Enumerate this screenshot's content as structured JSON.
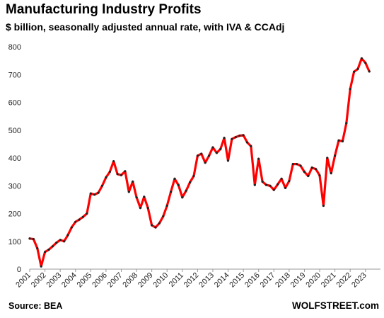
{
  "header": {
    "title": "Manufacturing Industry Profits",
    "subtitle": "$ billion, seasonally adjusted annual rate, with IVA & CCAdj"
  },
  "footer": {
    "source": "Source: BEA",
    "brand": "WOLFSTREET.com"
  },
  "chart_data": {
    "type": "line",
    "title": "Manufacturing Industry Profits",
    "subtitle": "$ billion, seasonally adjusted annual rate, with IVA & CCAdj",
    "xlabel": "",
    "ylabel": "",
    "ylim": [
      0,
      800
    ],
    "yticks": [
      0,
      100,
      200,
      300,
      400,
      500,
      600,
      700,
      800
    ],
    "xticks": [
      "2001",
      "2002",
      "2003",
      "2004",
      "2005",
      "2006",
      "2007",
      "2008",
      "2009",
      "2010",
      "2011",
      "2012",
      "2013",
      "2014",
      "2015",
      "2016",
      "2017",
      "2018",
      "2019",
      "2020",
      "2021",
      "2022",
      "2023"
    ],
    "grid": false,
    "legend": "none",
    "colors": {
      "line": "#ff0000",
      "marker": "#222222"
    },
    "series": [
      {
        "x": [
          "2001-Q1",
          "2001-Q2",
          "2001-Q3",
          "2001-Q4",
          "2002-Q1",
          "2002-Q2",
          "2002-Q3",
          "2002-Q4",
          "2003-Q1",
          "2003-Q2",
          "2003-Q3",
          "2003-Q4",
          "2004-Q1",
          "2004-Q2",
          "2004-Q3",
          "2004-Q4",
          "2005-Q1",
          "2005-Q2",
          "2005-Q3",
          "2005-Q4",
          "2006-Q1",
          "2006-Q2",
          "2006-Q3",
          "2006-Q4",
          "2007-Q1",
          "2007-Q2",
          "2007-Q3",
          "2007-Q4",
          "2008-Q1",
          "2008-Q2",
          "2008-Q3",
          "2008-Q4",
          "2009-Q1",
          "2009-Q2",
          "2009-Q3",
          "2009-Q4",
          "2010-Q1",
          "2010-Q2",
          "2010-Q3",
          "2010-Q4",
          "2011-Q1",
          "2011-Q2",
          "2011-Q3",
          "2011-Q4",
          "2012-Q1",
          "2012-Q2",
          "2012-Q3",
          "2012-Q4",
          "2013-Q1",
          "2013-Q2",
          "2013-Q3",
          "2013-Q4",
          "2014-Q1",
          "2014-Q2",
          "2014-Q3",
          "2014-Q4",
          "2015-Q1",
          "2015-Q2",
          "2015-Q3",
          "2015-Q4",
          "2016-Q1",
          "2016-Q2",
          "2016-Q3",
          "2016-Q4",
          "2017-Q1",
          "2017-Q2",
          "2017-Q3",
          "2017-Q4",
          "2018-Q1",
          "2018-Q2",
          "2018-Q3",
          "2018-Q4",
          "2019-Q1",
          "2019-Q2",
          "2019-Q3",
          "2019-Q4",
          "2020-Q1",
          "2020-Q2",
          "2020-Q3",
          "2020-Q4",
          "2021-Q1",
          "2021-Q2",
          "2021-Q3",
          "2021-Q4",
          "2022-Q1",
          "2022-Q2",
          "2022-Q3",
          "2022-Q4",
          "2023-Q1",
          "2023-Q2"
        ],
        "values": [
          110,
          108,
          75,
          10,
          62,
          70,
          82,
          95,
          105,
          100,
          122,
          150,
          170,
          178,
          188,
          200,
          272,
          268,
          275,
          300,
          330,
          350,
          388,
          342,
          338,
          352,
          278,
          315,
          258,
          220,
          260,
          220,
          158,
          150,
          165,
          190,
          228,
          278,
          325,
          302,
          258,
          282,
          312,
          335,
          408,
          415,
          383,
          408,
          438,
          418,
          432,
          472,
          390,
          468,
          475,
          480,
          482,
          456,
          442,
          303,
          397,
          315,
          303,
          300,
          285,
          305,
          325,
          292,
          317,
          378,
          378,
          372,
          350,
          335,
          365,
          360,
          337,
          228,
          400,
          345,
          408,
          463,
          460,
          525,
          648,
          710,
          720,
          758,
          742,
          711
        ]
      }
    ]
  }
}
